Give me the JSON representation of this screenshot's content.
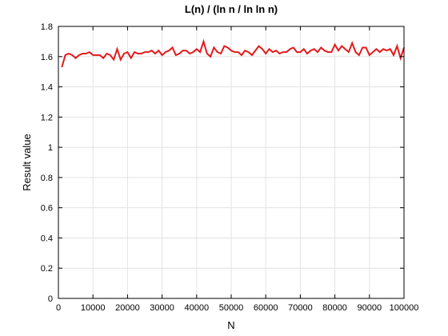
{
  "chart_data": {
    "type": "line",
    "title": "L(n) / (ln n / ln ln n)",
    "xlabel": "N",
    "ylabel": "Result value",
    "xlim": [
      0,
      100000
    ],
    "ylim": [
      0,
      1.8
    ],
    "grid": true,
    "x_ticks": [
      0,
      10000,
      20000,
      30000,
      40000,
      50000,
      60000,
      70000,
      80000,
      90000,
      100000
    ],
    "x_tick_labels": [
      "0",
      "10000",
      "20000",
      "30000",
      "40000",
      "50000",
      "60000",
      "70000",
      "80000",
      "90000",
      "100000"
    ],
    "y_ticks": [
      0,
      0.2,
      0.4,
      0.6,
      0.8,
      1,
      1.2,
      1.4,
      1.6,
      1.8
    ],
    "y_tick_labels": [
      "0",
      "0.2",
      "0.4",
      "0.6",
      "0.8",
      "1",
      "1.2",
      "1.4",
      "1.6",
      "1.8"
    ],
    "series": [
      {
        "color": "#e41a1c",
        "x": [
          1000,
          2000,
          3000,
          4000,
          5000,
          6000,
          7000,
          8000,
          9000,
          10000,
          11000,
          12000,
          13000,
          14000,
          15000,
          16000,
          17000,
          18000,
          19000,
          20000,
          21000,
          22000,
          23000,
          24000,
          25000,
          26000,
          27000,
          28000,
          29000,
          30000,
          31000,
          32000,
          33000,
          34000,
          35000,
          36000,
          37000,
          38000,
          39000,
          40000,
          41000,
          42000,
          43000,
          44000,
          45000,
          46000,
          47000,
          48000,
          49000,
          50000,
          51000,
          52000,
          53000,
          54000,
          55000,
          56000,
          57000,
          58000,
          59000,
          60000,
          61000,
          62000,
          63000,
          64000,
          65000,
          66000,
          67000,
          68000,
          69000,
          70000,
          71000,
          72000,
          73000,
          74000,
          75000,
          76000,
          77000,
          78000,
          79000,
          80000,
          81000,
          82000,
          83000,
          84000,
          85000,
          86000,
          87000,
          88000,
          89000,
          90000,
          91000,
          92000,
          93000,
          94000,
          95000,
          96000,
          97000,
          98000,
          99000,
          100000
        ],
        "y": [
          1.53,
          1.61,
          1.62,
          1.61,
          1.59,
          1.61,
          1.62,
          1.62,
          1.63,
          1.61,
          1.61,
          1.61,
          1.59,
          1.62,
          1.61,
          1.58,
          1.65,
          1.58,
          1.62,
          1.63,
          1.59,
          1.63,
          1.62,
          1.62,
          1.63,
          1.63,
          1.64,
          1.62,
          1.64,
          1.61,
          1.63,
          1.64,
          1.66,
          1.61,
          1.62,
          1.64,
          1.64,
          1.62,
          1.63,
          1.65,
          1.63,
          1.7,
          1.62,
          1.6,
          1.66,
          1.63,
          1.62,
          1.67,
          1.66,
          1.64,
          1.63,
          1.63,
          1.61,
          1.64,
          1.63,
          1.61,
          1.64,
          1.67,
          1.65,
          1.62,
          1.65,
          1.63,
          1.64,
          1.62,
          1.63,
          1.63,
          1.65,
          1.66,
          1.63,
          1.63,
          1.65,
          1.62,
          1.64,
          1.65,
          1.63,
          1.66,
          1.64,
          1.63,
          1.63,
          1.68,
          1.64,
          1.67,
          1.65,
          1.63,
          1.69,
          1.63,
          1.61,
          1.66,
          1.66,
          1.61,
          1.63,
          1.65,
          1.63,
          1.65,
          1.64,
          1.65,
          1.61,
          1.67,
          1.59,
          1.66
        ]
      }
    ]
  }
}
